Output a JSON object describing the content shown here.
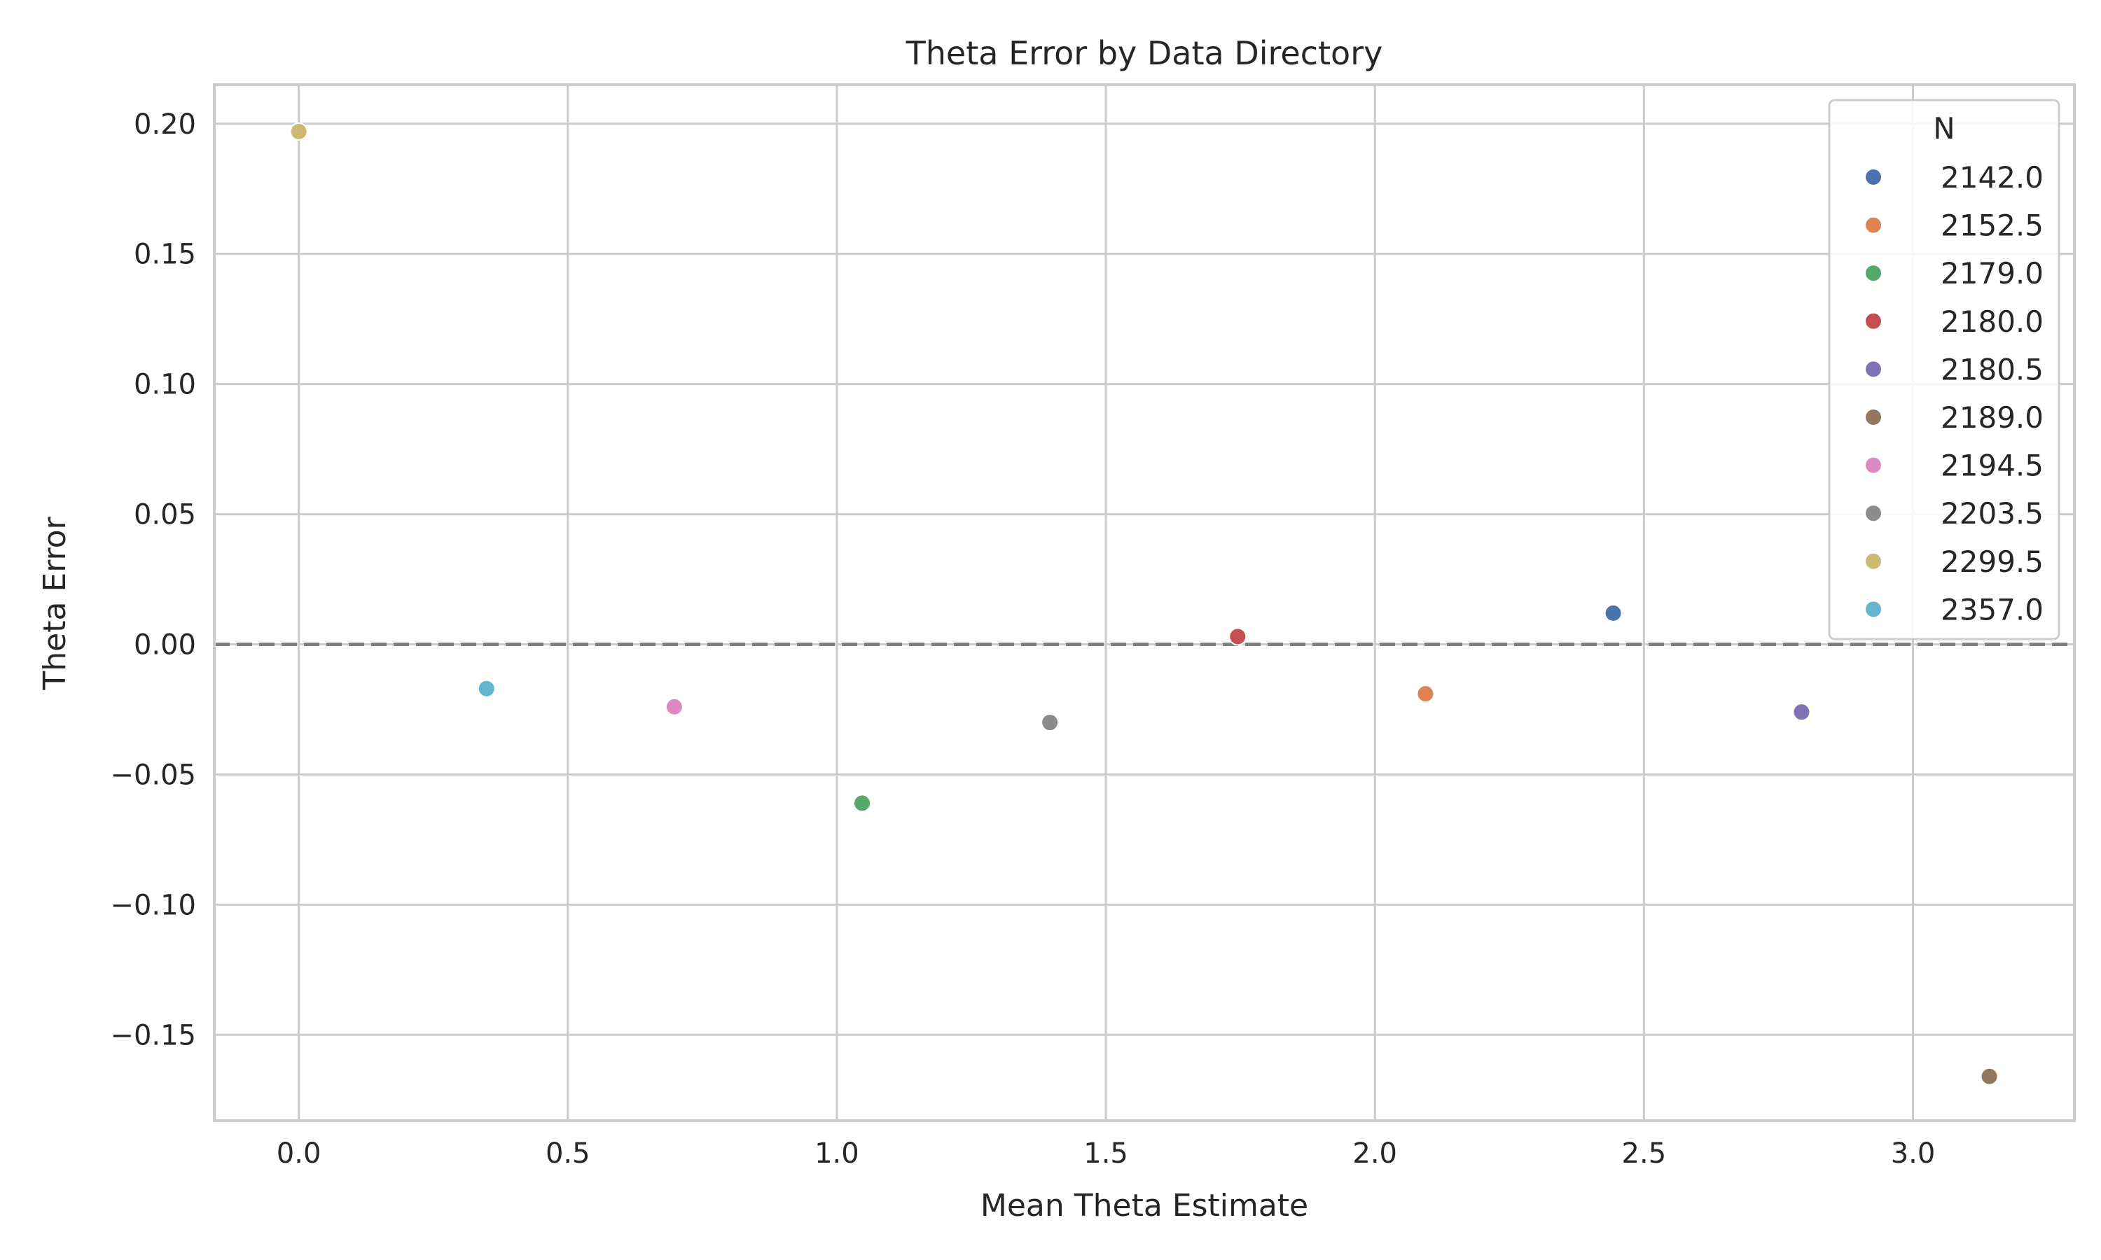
{
  "chart_data": {
    "type": "scatter",
    "title": "Theta Error by Data Directory",
    "xlabel": "Mean Theta Estimate",
    "ylabel": "Theta Error",
    "xlim": [
      -0.157,
      3.3
    ],
    "ylim": [
      -0.183,
      0.215
    ],
    "xticks": [
      0.0,
      0.5,
      1.0,
      1.5,
      2.0,
      2.5,
      3.0
    ],
    "xtick_labels": [
      "0.0",
      "0.5",
      "1.0",
      "1.5",
      "2.0",
      "2.5",
      "3.0"
    ],
    "yticks": [
      0.2,
      0.15,
      0.1,
      0.05,
      0.0,
      -0.05,
      -0.1,
      -0.15
    ],
    "ytick_labels": [
      "0.20",
      "0.15",
      "0.10",
      "0.05",
      "0.00",
      "−0.05",
      "−0.10",
      "−0.15"
    ],
    "grid": true,
    "reference_line": {
      "y": 0.0,
      "style": "dashed",
      "color": "#808080"
    },
    "legend": {
      "title": "N",
      "placement": "top-right"
    },
    "series": [
      {
        "name": "2142.0",
        "color": "#4c72b0",
        "x": [
          2.443
        ],
        "y": [
          0.012
        ]
      },
      {
        "name": "2152.5",
        "color": "#dd8452",
        "x": [
          2.094
        ],
        "y": [
          -0.019
        ]
      },
      {
        "name": "2179.0",
        "color": "#55a868",
        "x": [
          1.047
        ],
        "y": [
          -0.061
        ]
      },
      {
        "name": "2180.0",
        "color": "#c44e52",
        "x": [
          1.745
        ],
        "y": [
          0.003
        ]
      },
      {
        "name": "2180.5",
        "color": "#8172b3",
        "x": [
          2.793
        ],
        "y": [
          -0.026
        ]
      },
      {
        "name": "2189.0",
        "color": "#937860",
        "x": [
          3.142
        ],
        "y": [
          -0.166
        ]
      },
      {
        "name": "2194.5",
        "color": "#da8bc3",
        "x": [
          0.698
        ],
        "y": [
          -0.024
        ]
      },
      {
        "name": "2203.5",
        "color": "#8c8c8c",
        "x": [
          1.396
        ],
        "y": [
          -0.03
        ]
      },
      {
        "name": "2299.5",
        "color": "#ccb974",
        "x": [
          0.0
        ],
        "y": [
          0.197
        ]
      },
      {
        "name": "2357.0",
        "color": "#64b5cd",
        "x": [
          0.349
        ],
        "y": [
          -0.017
        ]
      }
    ]
  }
}
